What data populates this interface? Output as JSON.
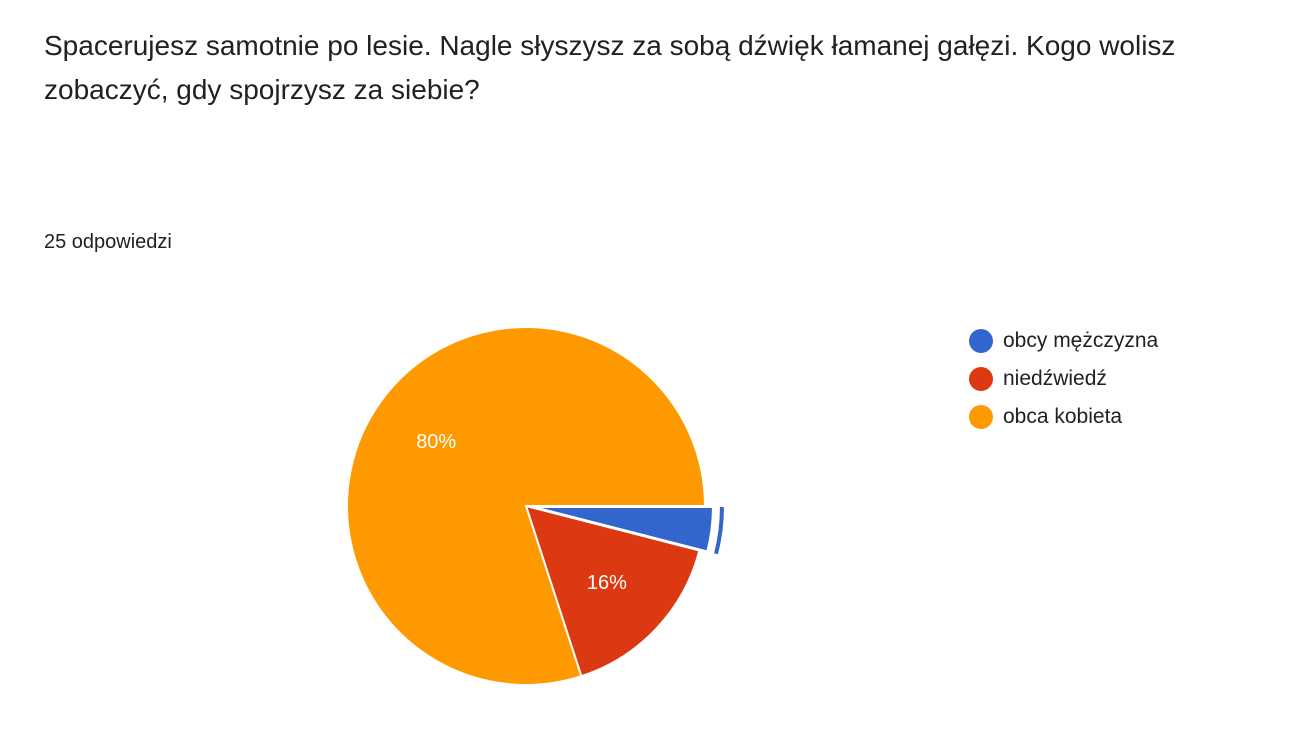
{
  "question": {
    "title": "Spacerujesz samotnie po lesie. Nagle słyszysz za sobą dźwięk łamanej gałęzi. Kogo wolisz zobaczyć, gdy spojrzysz za siebie?",
    "response_count": "25 odpowiedzi"
  },
  "chart_data": {
    "type": "pie",
    "slices": [
      {
        "label": "obcy mężczyzna",
        "value": 1,
        "percent_label": "",
        "color": "#3366cc",
        "exploded": true
      },
      {
        "label": "niedźwiedź",
        "value": 4,
        "percent_label": "16%",
        "color": "#dc3912",
        "exploded": false
      },
      {
        "label": "obca kobieta",
        "value": 20,
        "percent_label": "80%",
        "color": "#ff9900",
        "exploded": false
      }
    ],
    "total": 25,
    "start_angle_deg": 0,
    "direction": "clockwise",
    "legend_position": "right"
  }
}
